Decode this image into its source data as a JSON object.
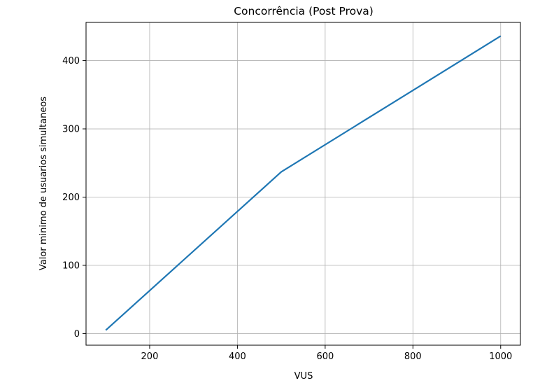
{
  "chart_data": {
    "type": "line",
    "title": "Concorrência (Post Prova)",
    "xlabel": "VUS",
    "ylabel": "Valor minimo de usuarios simultaneos",
    "xlim": [
      55,
      1045
    ],
    "ylim": [
      -17,
      456
    ],
    "xticks": [
      200,
      400,
      600,
      800,
      1000
    ],
    "yticks": [
      0,
      100,
      200,
      300,
      400
    ],
    "grid": true,
    "series": [
      {
        "color": "#1f77b4",
        "x": [
          100,
          500,
          1000
        ],
        "y": [
          5,
          237,
          436
        ]
      }
    ]
  }
}
